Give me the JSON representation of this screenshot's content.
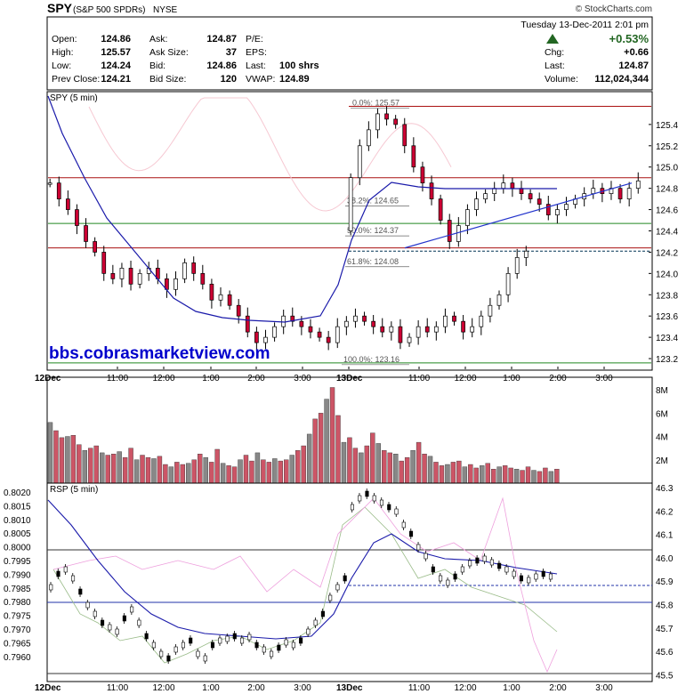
{
  "header": {
    "symbol": "SPY",
    "name": "(S&P 500 SPDRs)",
    "exchange": "NYSE",
    "copyright": "© StockCharts.com",
    "date_line": "Tuesday  13-Dec-2011  2:01 pm",
    "change_pct": "+0.53%",
    "quote_left": [
      {
        "label": "Open:",
        "value": "124.86"
      },
      {
        "label": "High:",
        "value": "125.57"
      },
      {
        "label": "Low:",
        "value": "124.24"
      },
      {
        "label": "Prev Close:",
        "value": "124.21"
      }
    ],
    "quote_mid": [
      {
        "label": "Ask:",
        "value": "124.87"
      },
      {
        "label": "Ask Size:",
        "value": "37"
      },
      {
        "label": "Bid:",
        "value": "124.86"
      },
      {
        "label": "Bid Size:",
        "value": "120"
      }
    ],
    "quote_mid2": [
      {
        "label": "P/E:",
        "value": ""
      },
      {
        "label": "EPS:",
        "value": ""
      },
      {
        "label": "Last:",
        "value": "100 shrs"
      },
      {
        "label": "VWAP:",
        "value": "124.89"
      }
    ],
    "quote_right": [
      {
        "label": "Chg:",
        "value": "+0.66"
      },
      {
        "label": "Last:",
        "value": "124.87"
      },
      {
        "label": "Volume:",
        "value": "112,024,344"
      }
    ]
  },
  "watermark": "bbs.cobrasmarketview.com",
  "colors": {
    "up": "#ffffff",
    "down": "#cc0033",
    "ma": "#1a1aaa",
    "hline": "#aa1111",
    "green_line": "#228822",
    "pink": "#f0a0b8",
    "trend": "#2233cc",
    "vol_up": "#888888",
    "vol_down": "#cc5566"
  },
  "chart_data": [
    {
      "type": "candlestick",
      "title": "SPY (5 min)",
      "ylim": [
        123.1,
        125.7
      ],
      "y_ticks": [
        123.2,
        123.4,
        123.6,
        123.8,
        124.0,
        124.2,
        124.4,
        124.6,
        124.8,
        125.0,
        125.2,
        125.4
      ],
      "x_ticks": [
        "12Dec",
        "11:00",
        "12:00",
        "1:00",
        "2:00",
        "3:00",
        "13Dec",
        "11:00",
        "12:00",
        "1:00",
        "2:00",
        "3:00"
      ],
      "fib_levels": [
        {
          "label": "0.0%: 125.57",
          "value": 125.57
        },
        {
          "label": "38.2%: 124.65",
          "value": 124.65
        },
        {
          "label": "50.0%: 124.37",
          "value": 124.37
        },
        {
          "label": "61.8%: 124.08",
          "value": 124.08
        },
        {
          "label": "100.0%: 123.16",
          "value": 123.16
        }
      ],
      "horizontal_lines": [
        125.57,
        124.9,
        124.47,
        124.24,
        123.16
      ],
      "prev_close": 124.21,
      "trendline": [
        [
          124.24,
          124.85
        ]
      ],
      "ohlc_day1_close": [
        124.85,
        124.7,
        124.6,
        124.45,
        124.3,
        124.2,
        124.0,
        123.95,
        124.05,
        123.9,
        124.0,
        124.05,
        123.95,
        123.85,
        123.95,
        124.1,
        124.0,
        123.9,
        123.75,
        123.8,
        123.7,
        123.6,
        123.45,
        123.35,
        123.4,
        123.5,
        123.6,
        123.55,
        123.5,
        123.45,
        123.4,
        123.35,
        123.5,
        123.55,
        123.6,
        123.55,
        123.5,
        123.45,
        123.5,
        123.35,
        123.4,
        123.5,
        123.45,
        123.5,
        123.6,
        123.55,
        123.45,
        123.5,
        123.6,
        123.7,
        123.8,
        124.0,
        124.15,
        124.21
      ],
      "ohlc_day2_close": [
        124.9,
        125.2,
        125.35,
        125.5,
        125.45,
        125.4,
        125.2,
        125.0,
        124.85,
        124.7,
        124.5,
        124.3,
        124.45,
        124.6,
        124.7,
        124.75,
        124.8,
        124.85,
        124.8,
        124.75,
        124.7,
        124.65,
        124.55,
        124.6,
        124.65,
        124.7,
        124.75,
        124.8,
        124.75,
        124.8,
        124.7,
        124.8,
        124.87
      ]
    },
    {
      "type": "bar",
      "title": "Volume",
      "y_ticks": [
        "2M",
        "4M",
        "6M",
        "8M"
      ],
      "ylim": [
        0,
        9
      ]
    },
    {
      "type": "line",
      "title": "RSP (5 min)",
      "left_ticks": [
        "0.8020",
        "0.8015",
        "0.8010",
        "0.8005",
        "0.8000",
        "0.7995",
        "0.7990",
        "0.7985",
        "0.7980",
        "0.7975",
        "0.7970",
        "0.7965",
        "0.7960"
      ],
      "right_ticks": [
        "46.3",
        "46.2",
        "46.1",
        "46.0",
        "45.9",
        "45.8",
        "45.7",
        "45.6",
        "45.5"
      ],
      "x_ticks": [
        "12Dec",
        "11:00",
        "12:00",
        "1:00",
        "2:00",
        "3:00",
        "13Dec",
        "11:00",
        "12:00",
        "1:00",
        "2:00",
        "3:00"
      ]
    }
  ]
}
